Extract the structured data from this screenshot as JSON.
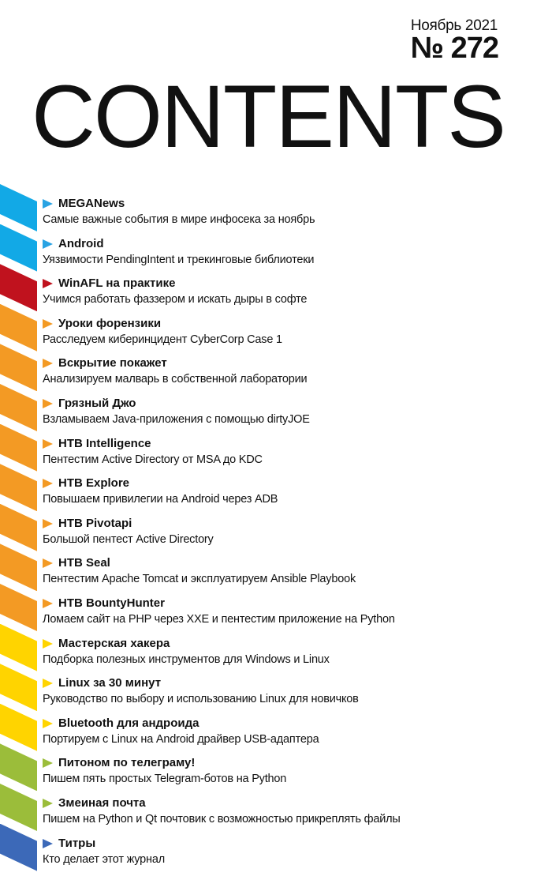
{
  "header": {
    "date": "Ноябрь 2021",
    "issue": "№ 272",
    "title": "CONTENTS"
  },
  "colors": {
    "blue": "#12a9e6",
    "red": "#c0121e",
    "orange": "#f39a24",
    "yellow": "#ffd400",
    "green": "#9bbd3a",
    "navy": "#3c69b8",
    "arrow_blue": "#29a3e3",
    "arrow_red": "#c0121e"
  },
  "toc": {
    "items": [
      {
        "title": "MEGANews",
        "desc": "Самые важные события в мире инфосека за ноябрь",
        "band": "#12a9e6",
        "arrow": "#29a3e3"
      },
      {
        "title": "Android",
        "desc": "Уязвимости PendingIntent и трекинговые библиотеки",
        "band": "#12a9e6",
        "arrow": "#29a3e3"
      },
      {
        "title": "WinAFL на практике",
        "desc": "Учимся работать фаззером и искать дыры в софте",
        "band": "#c0121e",
        "arrow": "#c0121e"
      },
      {
        "title": "Уроки форензики",
        "desc": "Расследуем киберинцидент CyberCorp Case 1",
        "band": "#f39a24",
        "arrow": "#f39a24"
      },
      {
        "title": "Вскрытие покажет",
        "desc": "Анализируем малварь в собственной лаборатории",
        "band": "#f39a24",
        "arrow": "#f39a24"
      },
      {
        "title": "Грязный Джо",
        "desc": "Взламываем Java-приложения с помощью dirtyJOE",
        "band": "#f39a24",
        "arrow": "#f39a24"
      },
      {
        "title": "HTB Intelligence",
        "desc": "Пентестим Active Directory от MSA до KDC",
        "band": "#f39a24",
        "arrow": "#f39a24"
      },
      {
        "title": "HTB Explore",
        "desc": "Повышаем привилегии на Android через ADB",
        "band": "#f39a24",
        "arrow": "#f39a24"
      },
      {
        "title": "HTB Pivotapi",
        "desc": "Большой пентест Active Directory",
        "band": "#f39a24",
        "arrow": "#f39a24"
      },
      {
        "title": "HTB Seal",
        "desc": "Пентестим Apache Tomcat и эксплуатируем Ansible Playbook",
        "band": "#f39a24",
        "arrow": "#f39a24"
      },
      {
        "title": "HTB BountyHunter",
        "desc": "Ломаем сайт на PHP через XXE и пентестим приложение на Python",
        "band": "#f39a24",
        "arrow": "#f39a24"
      },
      {
        "title": "Мастерская хакера",
        "desc": "Подборка полезных инструментов для Windows и Linux",
        "band": "#ffd400",
        "arrow": "#ffd400"
      },
      {
        "title": "Linux за 30 минут",
        "desc": "Руководство по выбору и использованию Linux для новичков",
        "band": "#ffd400",
        "arrow": "#ffd400"
      },
      {
        "title": "Bluetooth для андроида",
        "desc": "Портируем с Linux на Android драйвер USB-адаптера",
        "band": "#ffd400",
        "arrow": "#ffd400"
      },
      {
        "title": "Питоном по телеграму!",
        "desc": "Пишем пять простых Telegram-ботов на Python",
        "band": "#9bbd3a",
        "arrow": "#9bbd3a"
      },
      {
        "title": "Змеиная почта",
        "desc": "Пишем на Python и Qt почтовик с возможностью прикреплять файлы",
        "band": "#9bbd3a",
        "arrow": "#9bbd3a"
      },
      {
        "title": "Титры",
        "desc": "Кто делает этот журнал",
        "band": "#3c69b8",
        "arrow": "#3c69b8"
      }
    ]
  }
}
